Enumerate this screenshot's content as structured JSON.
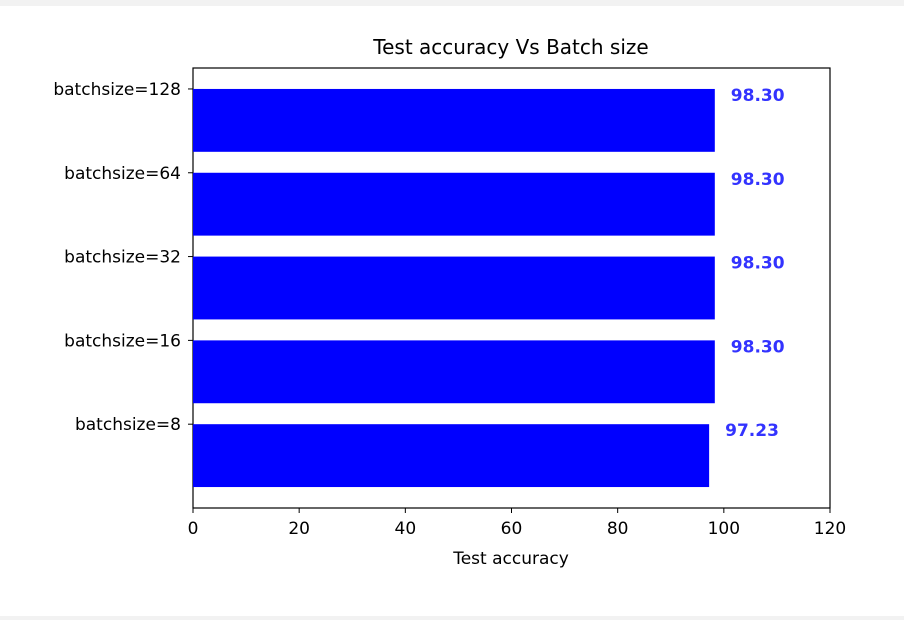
{
  "chart_data": {
    "type": "bar",
    "orientation": "horizontal",
    "title": "Test accuracy Vs Batch size",
    "xlabel": "Test accuracy",
    "ylabel": "",
    "xlim": [
      0,
      120
    ],
    "xticks": [
      "0",
      "20",
      "40",
      "60",
      "80",
      "100",
      "120"
    ],
    "categories": [
      "batchsize=8",
      "batchsize=16",
      "batchsize=32",
      "batchsize=64",
      "batchsize=128"
    ],
    "values": [
      97.23,
      98.3,
      98.3,
      98.3,
      98.3
    ],
    "data_labels": [
      "97.23",
      "98.30",
      "98.30",
      "98.30",
      "98.30"
    ],
    "bar_color": "#0000ff",
    "label_color": "#3333ff",
    "grid": false,
    "legend": "none"
  }
}
